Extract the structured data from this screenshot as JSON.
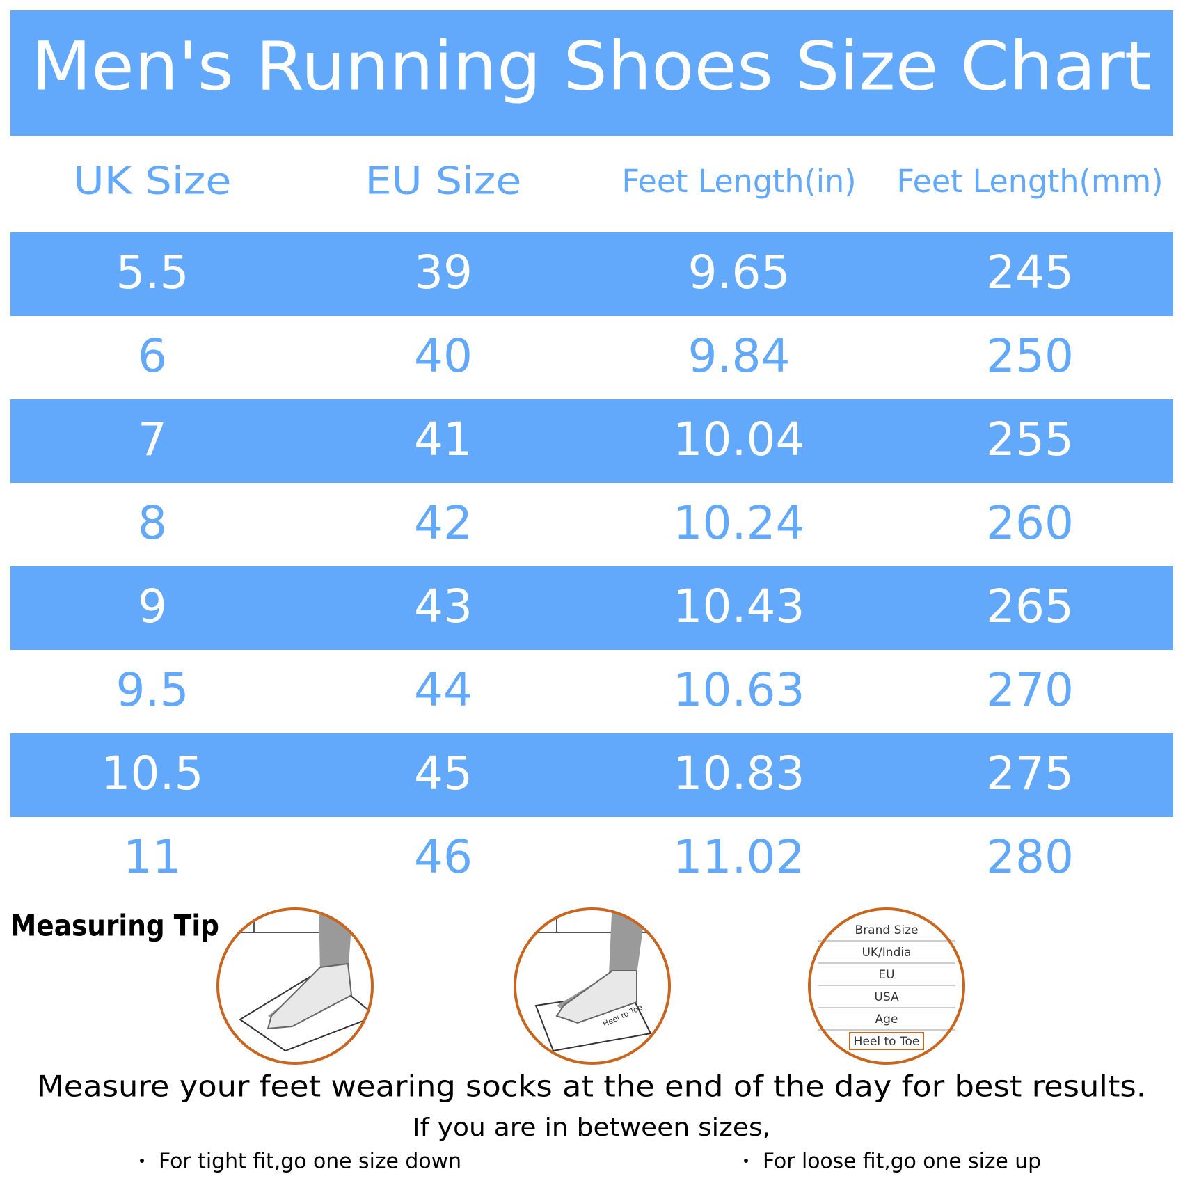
{
  "header": {
    "title": "Men's Running Shoes Size Chart"
  },
  "table": {
    "columns": [
      "UK Size",
      "EU Size",
      "Feet Length(in)",
      "Feet Length(mm)"
    ],
    "rows": [
      [
        "5.5",
        "39",
        "9.65",
        "245"
      ],
      [
        "6",
        "40",
        "9.84",
        "250"
      ],
      [
        "7",
        "41",
        "10.04",
        "255"
      ],
      [
        "8",
        "42",
        "10.24",
        "260"
      ],
      [
        "9",
        "43",
        "10.43",
        "265"
      ],
      [
        "9.5",
        "44",
        "10.63",
        "270"
      ],
      [
        "10.5",
        "45",
        "10.83",
        "275"
      ],
      [
        "11",
        "46",
        "11.02",
        "280"
      ]
    ]
  },
  "measuring_tip": {
    "label": "Measuring Tip",
    "mat_label": "Heel to Toe",
    "size_card": [
      "Brand Size",
      "UK/India",
      "EU",
      "USA",
      "Age",
      "Heel to Toe"
    ]
  },
  "footer": {
    "note": "Measure your feet wearing socks at the end of the day for best results.",
    "between": "If you are in between sizes,",
    "tips": [
      "For tight fit,go one size down",
      "For loose fit,go one size up"
    ]
  }
}
